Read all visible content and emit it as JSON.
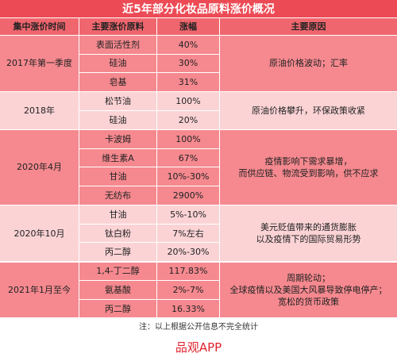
{
  "title": "近5年部分化妆品原料涨价概况",
  "table": {
    "header": [
      "集中涨价时间",
      "主要涨价原料",
      "涨幅",
      "主要原因"
    ],
    "groups": [
      {
        "period": "2017年第一季度",
        "rows": [
          [
            "表面活性剂",
            "40%"
          ],
          [
            "硅油",
            "30%"
          ],
          [
            "皂基",
            "31%"
          ]
        ],
        "reason": [
          "原油价格波动；汇率"
        ]
      },
      {
        "period": "2018年",
        "rows": [
          [
            "松节油",
            "100%"
          ],
          [
            "硅油",
            "20%"
          ]
        ],
        "reason": [
          "原油价格攀升，环保政策收紧"
        ]
      },
      {
        "period": "2020年4月",
        "rows": [
          [
            "卡波姆",
            "100%"
          ],
          [
            "维生素A",
            "67%"
          ],
          [
            "甘油",
            "10%-30%"
          ],
          [
            "无纺布",
            "2900%"
          ]
        ],
        "reason": [
          "疫情影响下需求暴增，",
          "而供应链、物流受到影响，供不应求"
        ]
      },
      {
        "period": "2020年10月",
        "rows": [
          [
            "甘油",
            "5%-10%"
          ],
          [
            "钛白粉",
            "7%左右"
          ],
          [
            "丙二醇",
            "20%-30%"
          ]
        ],
        "reason": [
          "美元贬值带来的通货膨胀",
          "以及疫情下的国际贸易形势"
        ]
      },
      {
        "period": "2021年1月至今",
        "rows": [
          [
            "1,4-丁二醇",
            "117.83%"
          ],
          [
            "氨基酸",
            "2%-7%"
          ],
          [
            "丙二醇",
            "16.33%"
          ]
        ],
        "reason": [
          "周期轮动；",
          "全球疫情以及美国大风暴导致停电停产；",
          "宽松的货币政策"
        ]
      }
    ]
  },
  "note": "注：以上根据公开信息不完全统计",
  "footer": "品观APP"
}
